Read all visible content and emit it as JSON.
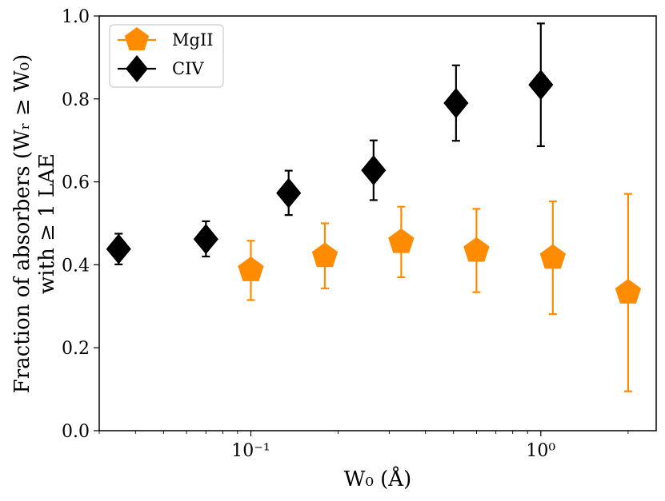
{
  "chart_data": {
    "type": "scatter",
    "xscale": "log",
    "xlim": [
      0.03,
      2.5
    ],
    "ylim": [
      0.0,
      1.0
    ],
    "xlabel": "W₀ (Å)",
    "ylabel_line1": "Fraction of absorbers (Wᵣ ≥ W₀)",
    "ylabel_line2": "with ≥ 1 LAE",
    "x_ticks": [
      {
        "value": 0.1,
        "label": "10⁻¹"
      },
      {
        "value": 1.0,
        "label": "10⁰"
      }
    ],
    "y_ticks": [
      {
        "value": 0.0,
        "label": "0.0"
      },
      {
        "value": 0.2,
        "label": "0.2"
      },
      {
        "value": 0.4,
        "label": "0.4"
      },
      {
        "value": 0.6,
        "label": "0.6"
      },
      {
        "value": 0.8,
        "label": "0.8"
      },
      {
        "value": 1.0,
        "label": "1.0"
      }
    ],
    "legend": {
      "placement": "top-left"
    },
    "series": [
      {
        "name": "MgII",
        "color": "#ff8c00",
        "marker": "pentagon",
        "points": [
          {
            "x": 0.1,
            "y": 0.387,
            "ylo": 0.315,
            "yhi": 0.458
          },
          {
            "x": 0.18,
            "y": 0.421,
            "ylo": 0.343,
            "yhi": 0.5
          },
          {
            "x": 0.33,
            "y": 0.455,
            "ylo": 0.37,
            "yhi": 0.54
          },
          {
            "x": 0.6,
            "y": 0.434,
            "ylo": 0.334,
            "yhi": 0.535
          },
          {
            "x": 1.1,
            "y": 0.417,
            "ylo": 0.281,
            "yhi": 0.553
          },
          {
            "x": 2.0,
            "y": 0.333,
            "ylo": 0.095,
            "yhi": 0.571
          }
        ]
      },
      {
        "name": "CIV",
        "color": "#000000",
        "marker": "diamond",
        "points": [
          {
            "x": 0.035,
            "y": 0.438,
            "ylo": 0.401,
            "yhi": 0.475
          },
          {
            "x": 0.07,
            "y": 0.462,
            "ylo": 0.42,
            "yhi": 0.505
          },
          {
            "x": 0.135,
            "y": 0.573,
            "ylo": 0.52,
            "yhi": 0.627
          },
          {
            "x": 0.265,
            "y": 0.628,
            "ylo": 0.556,
            "yhi": 0.7
          },
          {
            "x": 0.51,
            "y": 0.79,
            "ylo": 0.699,
            "yhi": 0.881
          },
          {
            "x": 1.0,
            "y": 0.834,
            "ylo": 0.686,
            "yhi": 0.982
          }
        ]
      }
    ]
  }
}
